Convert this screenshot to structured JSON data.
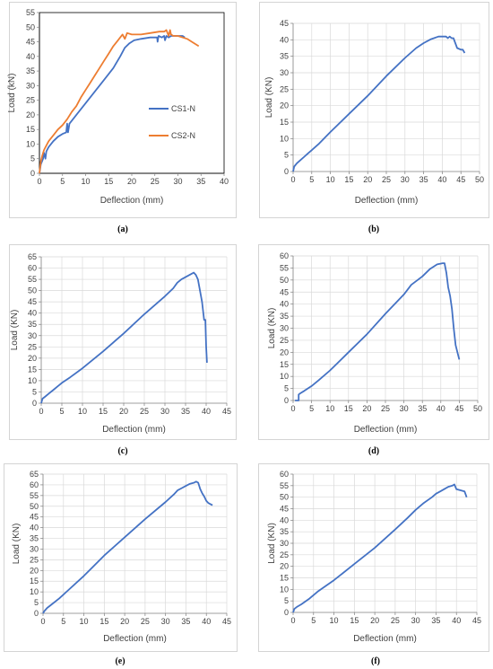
{
  "colors": {
    "blue": "#4472c4",
    "orange": "#ed7d31",
    "grid": "#d9d9d9",
    "axis": "#7f7f7f",
    "text": "#404040"
  },
  "chart_data": [
    {
      "id": "a",
      "caption": "(a)",
      "type": "line",
      "xlabel": "Deflection (mm)",
      "ylabel": "Load (kN)",
      "xlim": [
        0,
        40
      ],
      "ylim": [
        0,
        55
      ],
      "xstep": 5,
      "ystep": 5,
      "grid": false,
      "legend_position": "right-middle",
      "series": [
        {
          "name": "CS1-N",
          "color": "#4472c4",
          "x": [
            0,
            0.3,
            0.8,
            1,
            1.3,
            1.5,
            2,
            3,
            4,
            5,
            5.8,
            6,
            6.2,
            6.5,
            8,
            10,
            12,
            14,
            16,
            17.5,
            18.5,
            19.5,
            20.5,
            22,
            24,
            25.5,
            25.6,
            25.8,
            26.5,
            27,
            27.2,
            27.5,
            28,
            28.5,
            29,
            30,
            31,
            31.5
          ],
          "y": [
            0,
            3,
            5,
            7,
            5,
            7.5,
            9,
            11,
            12.5,
            13.5,
            14,
            17,
            14,
            17,
            20,
            24,
            28,
            32,
            36,
            40,
            43,
            44.5,
            45.5,
            46,
            46.5,
            46.5,
            45,
            47,
            46.5,
            47,
            45.5,
            47,
            46.5,
            47,
            47,
            47,
            47,
            46.5
          ]
        },
        {
          "name": "CS2-N",
          "color": "#ed7d31",
          "x": [
            0,
            0.3,
            0.6,
            1,
            1.5,
            2,
            3,
            4,
            5,
            6,
            7,
            8,
            9,
            10,
            11,
            12,
            13,
            14,
            15,
            16,
            17,
            17.5,
            18,
            18.5,
            19,
            20,
            22,
            24,
            26,
            27,
            27.5,
            28,
            28.3,
            28.5,
            29,
            30,
            31,
            32,
            33,
            34,
            34.5
          ],
          "y": [
            0,
            4,
            6,
            8,
            9.5,
            11,
            13,
            15,
            16.5,
            18.5,
            21,
            23,
            26,
            28.5,
            31,
            33.5,
            36,
            38.5,
            41,
            43.5,
            45.5,
            46.5,
            47.5,
            46,
            48,
            47.5,
            47.5,
            48,
            48.5,
            48.5,
            49,
            47,
            49,
            47.5,
            47,
            47,
            46.5,
            46,
            45,
            44,
            43.5
          ]
        }
      ]
    },
    {
      "id": "b",
      "caption": "(b)",
      "type": "line",
      "xlabel": "Deflection (mm)",
      "ylabel": "Load (KN)",
      "xlim": [
        0,
        50
      ],
      "ylim": [
        0,
        45
      ],
      "xstep": 5,
      "ystep": 5,
      "grid": true,
      "series": [
        {
          "name": "",
          "color": "#4472c4",
          "x": [
            0,
            0.3,
            1,
            2,
            3,
            4,
            5,
            7,
            10,
            15,
            20,
            25,
            30,
            33,
            35,
            37,
            39,
            41,
            41.5,
            42,
            42.5,
            43,
            44,
            45,
            45.5,
            46
          ],
          "y": [
            0,
            1.5,
            2.5,
            3.5,
            4.5,
            5.5,
            6.5,
            8.5,
            12,
            17.5,
            23,
            29,
            34.5,
            37.5,
            39,
            40.2,
            41,
            41,
            40.5,
            41,
            40.5,
            40.5,
            37.5,
            37,
            37,
            36
          ]
        }
      ]
    },
    {
      "id": "c",
      "caption": "(c)",
      "type": "line",
      "xlabel": "Deflection (mm)",
      "ylabel": "Load (KN)",
      "xlim": [
        0,
        45
      ],
      "ylim": [
        0,
        65
      ],
      "xstep": 5,
      "ystep": 5,
      "grid": true,
      "series": [
        {
          "name": "",
          "color": "#4472c4",
          "x": [
            0,
            0.3,
            1,
            2,
            3,
            4,
            5,
            7,
            10,
            15,
            20,
            25,
            30,
            32,
            33,
            34,
            35,
            36,
            36.5,
            37,
            37.5,
            38,
            38.5,
            39,
            39.5,
            39.8,
            40,
            40.2
          ],
          "y": [
            0,
            2,
            3,
            4.5,
            6,
            7.5,
            9,
            11.5,
            15.5,
            23,
            31,
            39.5,
            47.5,
            51,
            53.5,
            55,
            56,
            57,
            57.5,
            58,
            57,
            55,
            50,
            45,
            37,
            37,
            25,
            18
          ]
        }
      ]
    },
    {
      "id": "d",
      "caption": "(d)",
      "type": "line",
      "xlabel": "Deflection (mm)",
      "ylabel": "Load (KN)",
      "xlim": [
        0,
        50
      ],
      "ylim": [
        0,
        60
      ],
      "xstep": 5,
      "ystep": 5,
      "grid": true,
      "series": [
        {
          "name": "",
          "color": "#4472c4",
          "x": [
            0.5,
            1.5,
            1.5,
            2,
            3,
            5,
            7,
            10,
            15,
            20,
            25,
            30,
            32,
            35,
            37,
            39,
            40.5,
            41,
            41.5,
            42,
            42.5,
            43,
            43.5,
            44,
            44.5,
            45
          ],
          "y": [
            0,
            0,
            2.5,
            3,
            4,
            6,
            8.5,
            12.5,
            20,
            27.5,
            36,
            44,
            48,
            51.5,
            54.5,
            56.5,
            57,
            57,
            53,
            47,
            43.5,
            38,
            30,
            23,
            20,
            17
          ]
        }
      ]
    },
    {
      "id": "e",
      "caption": "(e)",
      "type": "line",
      "xlabel": "Deflection (mm)",
      "ylabel": "Load (KN)",
      "xlim": [
        0,
        45
      ],
      "ylim": [
        0,
        65
      ],
      "xstep": 5,
      "ystep": 5,
      "grid": true,
      "series": [
        {
          "name": "",
          "color": "#4472c4",
          "x": [
            0,
            0.3,
            1,
            2,
            4,
            6,
            10,
            15,
            20,
            25,
            30,
            32,
            33,
            34,
            35,
            36,
            37,
            37.5,
            38,
            38.5,
            39,
            39.5,
            40,
            40.5,
            41,
            41.5
          ],
          "y": [
            0,
            1,
            2.5,
            4,
            7,
            10.5,
            17.5,
            27,
            35.5,
            44,
            52,
            55.5,
            57.5,
            58.5,
            59.5,
            60.5,
            61,
            61.5,
            61,
            58,
            56,
            54.5,
            52.5,
            51.5,
            51,
            50.5
          ]
        }
      ]
    },
    {
      "id": "f",
      "caption": "(f)",
      "type": "line",
      "xlabel": "Deflection (mm)",
      "ylabel": "Load (KN)",
      "xlim": [
        0,
        45
      ],
      "ylim": [
        0,
        60
      ],
      "xstep": 5,
      "ystep": 5,
      "grid": true,
      "series": [
        {
          "name": "",
          "color": "#4472c4",
          "x": [
            0,
            0.3,
            1,
            2,
            4,
            6,
            8,
            10,
            15,
            20,
            25,
            28,
            30,
            32,
            34,
            35,
            36,
            37,
            38,
            39,
            39.5,
            40,
            41,
            42,
            42.5
          ],
          "y": [
            0,
            1.5,
            2.5,
            3.5,
            6,
            9,
            11.5,
            14,
            21,
            28,
            36,
            41,
            44.5,
            47.5,
            50,
            51.5,
            52.5,
            53.5,
            54.5,
            55,
            55.5,
            53.5,
            53,
            52.5,
            50
          ]
        }
      ]
    }
  ]
}
